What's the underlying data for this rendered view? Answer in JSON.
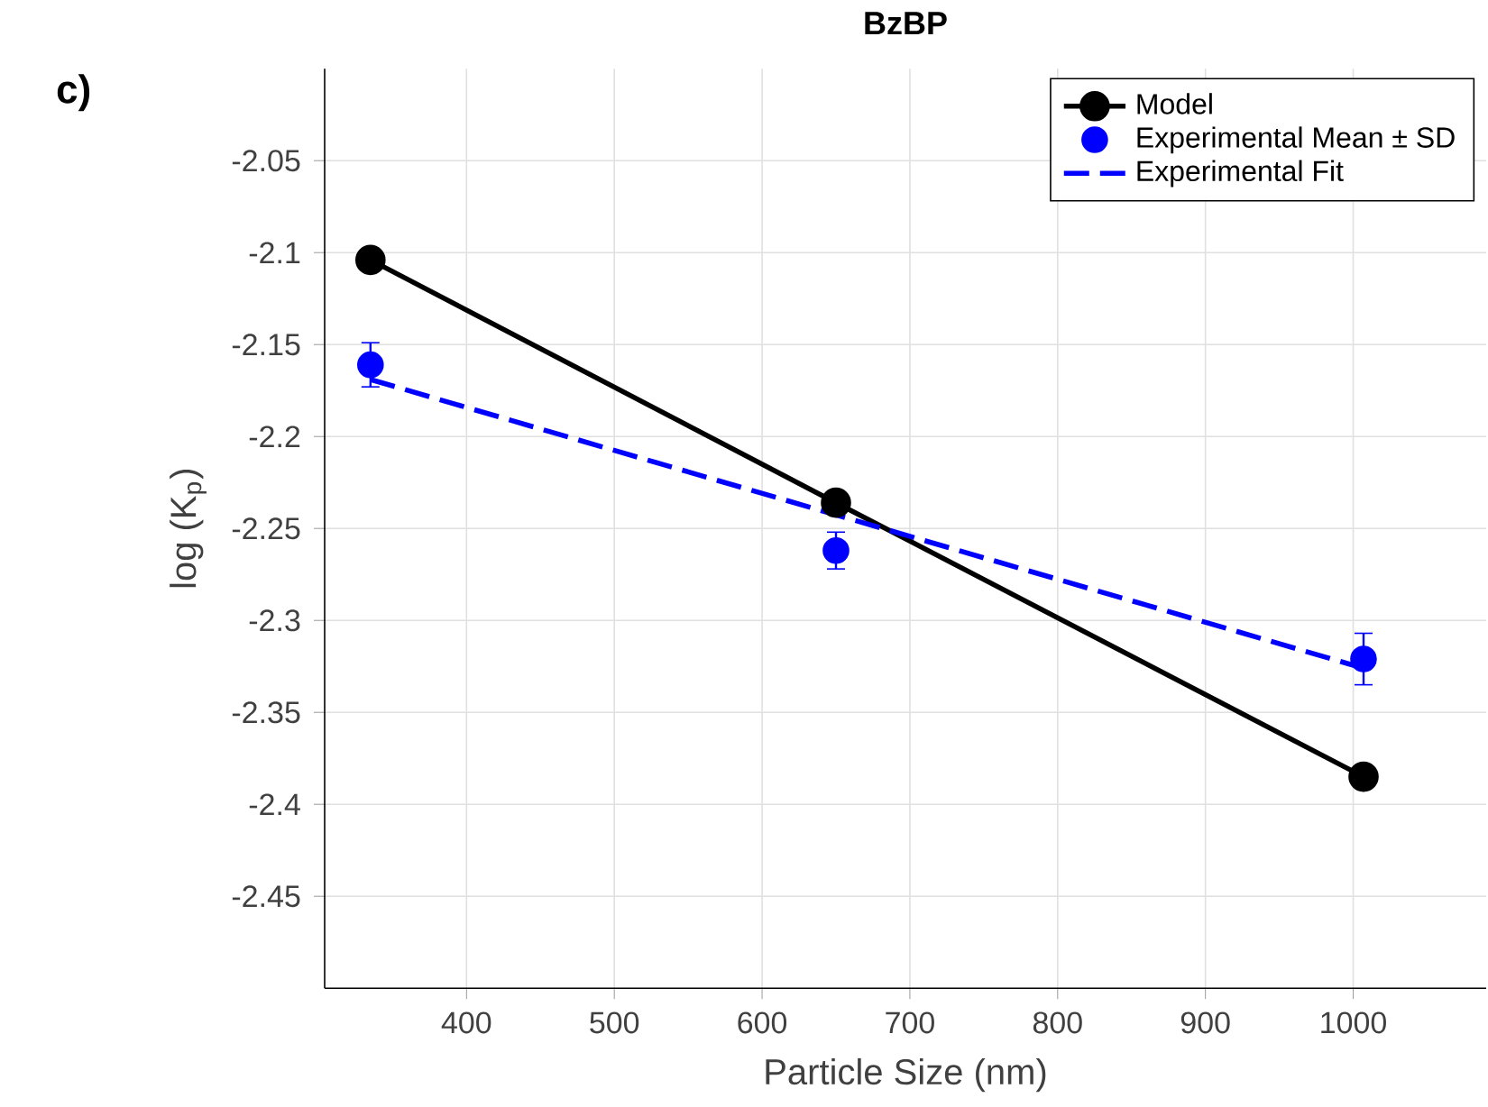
{
  "chart_data": {
    "type": "line",
    "title": "BzBP",
    "xlabel": "Particle Size (nm)",
    "ylabel": "log  (K$_{p}$)",
    "annotations": [
      "c)"
    ],
    "xlim": [
      304,
      1090
    ],
    "ylim": [
      -2.5,
      -2.0
    ],
    "xticks": [
      400,
      500,
      600,
      700,
      800,
      900,
      1000
    ],
    "yticks": [
      -2.45,
      -2.4,
      -2.35,
      -2.3,
      -2.25,
      -2.2,
      -2.15,
      -2.1,
      -2.05
    ],
    "grid": true,
    "legend": "top right",
    "series": [
      {
        "name": "Model",
        "color": "#000000",
        "marker": "circle",
        "line_style": "solid",
        "x": [
          335,
          650,
          1007
        ],
        "values": [
          -2.104,
          -2.236,
          -2.385
        ]
      },
      {
        "name": "Experimental Mean ± SD",
        "type": "scatter",
        "color": "#0000ff",
        "marker": "circle",
        "x": [
          335,
          650,
          1007
        ],
        "values": [
          -2.161,
          -2.262,
          -2.321
        ],
        "errors": [
          0.012,
          0.01,
          0.014
        ]
      },
      {
        "name": "Experimental Fit",
        "color": "#0000ff",
        "marker": "none",
        "line_style": "dashed",
        "x": [
          335,
          1007
        ],
        "values": [
          -2.169,
          -2.326
        ]
      }
    ]
  }
}
